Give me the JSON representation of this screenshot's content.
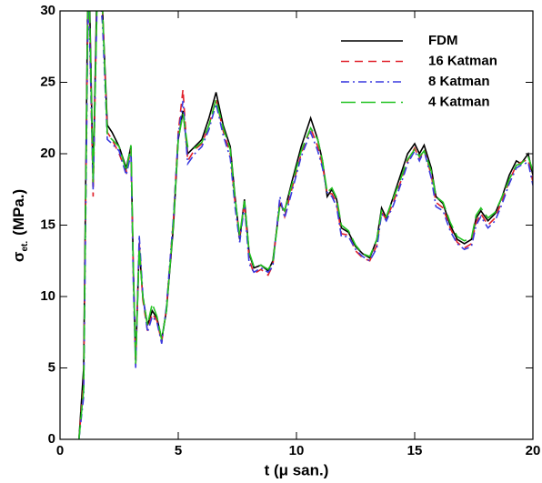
{
  "chart_data": {
    "type": "line",
    "x_label": "t (μ san.)",
    "y_label": {
      "symbol": "σ",
      "subscript": "et.",
      "unit": "(MPa.)"
    },
    "xlim": [
      0,
      20
    ],
    "xticks": [
      0,
      5,
      10,
      15,
      20
    ],
    "ylim": [
      0,
      30
    ],
    "yticks": [
      0,
      5,
      10,
      15,
      20,
      25,
      30
    ],
    "legend": "top-right",
    "x": [
      0.8,
      1.0,
      1.2,
      1.4,
      1.6,
      1.8,
      2.0,
      2.2,
      2.5,
      2.8,
      3.0,
      3.1,
      3.2,
      3.35,
      3.5,
      3.7,
      3.9,
      4.1,
      4.3,
      4.5,
      4.8,
      5.0,
      5.2,
      5.4,
      5.7,
      6.0,
      6.3,
      6.6,
      6.9,
      7.2,
      7.4,
      7.6,
      7.8,
      8.0,
      8.2,
      8.5,
      8.8,
      9.0,
      9.3,
      9.5,
      9.8,
      10.2,
      10.6,
      10.9,
      11.1,
      11.3,
      11.5,
      11.7,
      11.9,
      12.2,
      12.5,
      12.8,
      13.1,
      13.4,
      13.6,
      13.8,
      14.1,
      14.4,
      14.7,
      15.0,
      15.2,
      15.4,
      15.7,
      15.9,
      16.2,
      16.5,
      16.8,
      17.1,
      17.4,
      17.6,
      17.8,
      18.1,
      18.4,
      18.7,
      19.0,
      19.3,
      19.5,
      19.8,
      20.0
    ],
    "series": [
      {
        "name": "FDM",
        "color": "#000000",
        "dash": "none",
        "values": [
          0,
          5,
          35,
          18,
          35,
          30,
          22,
          21.5,
          20.5,
          19,
          20.5,
          12,
          5.5,
          13.5,
          10,
          8,
          9,
          8.5,
          7,
          9,
          15,
          21,
          23,
          20,
          20.5,
          21,
          22.5,
          24.3,
          22,
          20.5,
          17,
          14,
          16.8,
          13,
          12,
          12.2,
          11.8,
          12.5,
          16.5,
          16,
          18,
          20.5,
          22.5,
          21,
          19.5,
          17,
          17.5,
          16.8,
          14.8,
          14.5,
          13.5,
          13,
          12.7,
          14,
          16.2,
          15.5,
          17,
          18.5,
          20,
          20.7,
          20,
          20.6,
          19,
          17,
          16.5,
          15,
          14,
          13.7,
          14,
          15.5,
          16,
          15.3,
          15.8,
          17,
          18.5,
          19.5,
          19.3,
          20,
          18.5
        ]
      },
      {
        "name": "16 Katman",
        "color": "#e0202a",
        "dash": "9,6",
        "values": [
          0,
          4,
          33,
          17,
          34,
          30,
          21.5,
          21,
          20,
          18.7,
          20.3,
          11.5,
          5.2,
          13.8,
          9.8,
          7.6,
          8.8,
          8.3,
          6.8,
          9.2,
          15.5,
          21.5,
          24.5,
          19.5,
          20.3,
          20.7,
          22,
          23.8,
          21.6,
          20,
          16.6,
          14.2,
          16.5,
          12.6,
          11.6,
          11.9,
          11.5,
          12.2,
          16.8,
          15.6,
          17.5,
          20,
          21.8,
          20.5,
          19.2,
          17.2,
          17.2,
          16.5,
          14.4,
          14.3,
          13.2,
          12.7,
          12.5,
          13.6,
          15.9,
          15.4,
          16.6,
          18,
          19.5,
          20.4,
          19.6,
          20.3,
          18.5,
          16.6,
          16.2,
          14.8,
          13.8,
          13.4,
          13.7,
          15.2,
          15.8,
          15,
          15.5,
          16.7,
          18.1,
          19.2,
          19.4,
          19.6,
          18
        ]
      },
      {
        "name": "8 Katman",
        "color": "#3a3adf",
        "dash": "9,4,2,4",
        "values": [
          0,
          3,
          32,
          17.5,
          33,
          29,
          21,
          20.7,
          20.2,
          18.5,
          20,
          11,
          5,
          14.3,
          10.2,
          7.5,
          8.6,
          8.2,
          6.7,
          9.3,
          15.6,
          21.3,
          23.7,
          19.3,
          20,
          20.5,
          21.7,
          23.5,
          21.3,
          19.7,
          16.3,
          13.8,
          16.4,
          12.3,
          11.7,
          12,
          11.7,
          12.1,
          17,
          15.5,
          17.3,
          19.8,
          21.5,
          20.2,
          19,
          17.3,
          17,
          16.3,
          14.2,
          14.2,
          13.3,
          12.8,
          12.5,
          13.4,
          15.8,
          15.3,
          16.4,
          17.8,
          19.3,
          20.2,
          19.5,
          20.2,
          18.3,
          16.3,
          16,
          14.6,
          13.7,
          13.3,
          13.5,
          15,
          15.6,
          14.8,
          15.3,
          16.5,
          17.9,
          19,
          19.2,
          19.4,
          17.8
        ]
      },
      {
        "name": "4 Katman",
        "color": "#22c322",
        "dash": "16,6",
        "values": [
          0,
          3.5,
          34,
          18,
          33,
          30,
          21.3,
          21,
          20.5,
          18.8,
          20.6,
          12,
          5.3,
          13.4,
          10,
          8,
          9.5,
          8.6,
          7,
          9,
          15.2,
          21,
          22.8,
          20.5,
          20.4,
          20.8,
          22,
          23.8,
          21.8,
          20.3,
          16.9,
          14.3,
          16.7,
          13.1,
          12.1,
          12.2,
          11.9,
          12.4,
          16.4,
          16,
          17.8,
          20.2,
          21.8,
          21,
          19.5,
          17.3,
          17.6,
          16.9,
          15,
          14.6,
          13.6,
          13,
          12.8,
          14,
          16,
          15.6,
          16.9,
          18.2,
          19.6,
          20.3,
          19.8,
          20.2,
          18.8,
          17,
          16.6,
          15.2,
          14.2,
          13.9,
          14.1,
          15.7,
          16.2,
          15.5,
          15.9,
          17,
          18.2,
          19.2,
          19.3,
          19.8,
          18.8
        ]
      }
    ]
  }
}
